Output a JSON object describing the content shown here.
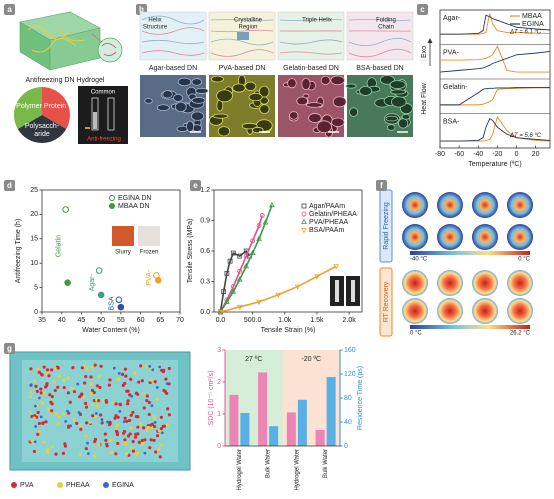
{
  "panel_labels": [
    "a",
    "b",
    "c",
    "d",
    "e",
    "f",
    "g"
  ],
  "panel_a": {
    "title": "Antifreezing DN Hydrogel",
    "pie_labels": {
      "polymer": "Polymer",
      "protein": "Protein",
      "polysaccharide": [
        "Polysacch-",
        "aride"
      ]
    },
    "photo_labels": [
      "Common",
      "Anti-freezing"
    ]
  },
  "panel_b": {
    "columns": [
      {
        "schematic": [
          "Helix",
          "Structure"
        ],
        "label": "Agar-based DN"
      },
      {
        "schematic": [
          "Crystalline",
          "Region"
        ],
        "label": "PVA-based DN"
      },
      {
        "schematic": [
          "Triple Helix"
        ],
        "label": "Gelatin-based DN"
      },
      {
        "schematic": [
          "Folding",
          "Chain"
        ],
        "label": "BSA-based DN"
      }
    ]
  },
  "panel_f": {
    "rows": [
      "Rapid Freezing",
      "RT Recovery"
    ],
    "scales": [
      [
        "-40 °C",
        "0 °C"
      ],
      [
        "0 °C",
        "26.2 °C"
      ]
    ]
  },
  "panel_g": {
    "legend": [
      "PVA",
      "PHEAA",
      "EGINA"
    ]
  },
  "chart_data": [
    {
      "type": "line",
      "x_label": "Temperature (ºC)",
      "y_label": "Heat Flow",
      "exo_label": "Exo",
      "x": [
        -80,
        -60,
        -40,
        -35,
        -32,
        -28,
        -25,
        -20,
        -10,
        0,
        20,
        35
      ],
      "xlim": [
        -80,
        35
      ],
      "xticks": [
        -80,
        -60,
        -40,
        -20,
        0,
        20
      ],
      "ylim": [
        0,
        4
      ],
      "groups": [
        {
          "label": "Agar-",
          "annotation": "ΔT = 6.1 ºC",
          "series": [
            {
              "name": "MBAA",
              "color": "#f08a24",
              "values": [
                3.3,
                3.3,
                3.3,
                3.32,
                3.35,
                3.9,
                3.6,
                3.4,
                3.35,
                3.35,
                3.33,
                3.32
              ]
            },
            {
              "name": "EGINA",
              "color": "#22385e",
              "values": [
                3.3,
                3.3,
                3.32,
                3.4,
                3.85,
                3.8,
                3.75,
                3.7,
                3.6,
                3.5,
                3.45,
                3.42
              ]
            }
          ]
        },
        {
          "label": "PVA-",
          "series": [
            {
              "name": "MBAA",
              "color": "#f08a24",
              "values": [
                2.55,
                2.55,
                2.56,
                2.58,
                2.6,
                2.65,
                2.7,
                2.95,
                2.25,
                2.2,
                2.2,
                2.2
              ]
            },
            {
              "name": "EGINA",
              "color": "#22385e",
              "values": [
                2.2,
                2.25,
                2.3,
                2.32,
                2.35,
                2.4,
                2.45,
                2.5,
                2.6,
                2.7,
                2.75,
                2.8
              ]
            }
          ]
        },
        {
          "label": "Gelatin-",
          "series": [
            {
              "name": "MBAA",
              "color": "#f08a24",
              "values": [
                1.25,
                1.25,
                1.25,
                1.27,
                1.3,
                1.35,
                1.4,
                1.7,
                1.72,
                1.73,
                1.75,
                1.75
              ]
            },
            {
              "name": "EGINA",
              "color": "#22385e",
              "values": [
                1.25,
                1.25,
                1.6,
                1.7,
                1.72,
                1.73,
                1.73,
                1.74,
                1.74,
                1.75,
                1.75,
                1.75
              ]
            }
          ]
        },
        {
          "label": "BSA-",
          "annotation": "ΔT = 5.6 ºC",
          "series": [
            {
              "name": "MBAA",
              "color": "#f08a24",
              "values": [
                0.2,
                0.2,
                0.2,
                0.2,
                0.22,
                0.25,
                0.4,
                0.9,
                0.5,
                0.3,
                0.22,
                0.2
              ]
            },
            {
              "name": "EGINA",
              "color": "#22385e",
              "values": [
                0.2,
                0.2,
                0.22,
                0.3,
                0.6,
                0.85,
                0.8,
                0.6,
                0.4,
                0.3,
                0.25,
                0.22
              ]
            }
          ]
        }
      ]
    },
    {
      "type": "scatter",
      "x_label": "Water Content (%)",
      "y_label": "Antifreezing Time (h)",
      "xlim": [
        35,
        70
      ],
      "xticks": [
        35,
        40,
        45,
        50,
        55,
        60,
        65,
        70
      ],
      "ylim": [
        0,
        25
      ],
      "yticks": [
        0,
        5,
        10,
        15,
        20,
        25
      ],
      "groups": [
        "Gelatin",
        "Agar-",
        "BSA",
        "PVA-"
      ],
      "group_colors": [
        "#3f9a3c",
        "#3aa08a",
        "#2f4fa8",
        "#f0a030"
      ],
      "series": [
        {
          "name": "EGINA DN",
          "marker": "open",
          "x": [
            41,
            49.5,
            54.5,
            64
          ],
          "values": [
            21,
            8.5,
            2.5,
            7.5
          ]
        },
        {
          "name": "MBAA DN",
          "marker": "filled",
          "x": [
            41.5,
            50,
            55,
            64.5
          ],
          "values": [
            6,
            3.5,
            1,
            6.5
          ]
        }
      ],
      "inset_labels": [
        "Slurry",
        "Frozen"
      ]
    },
    {
      "type": "line",
      "x_label": "Tensile Strain (%)",
      "y_label": "Tensile Stress (MPa)",
      "xlim": [
        -100,
        2200
      ],
      "xticks": [
        {
          "value": 0,
          "label": "0.0"
        },
        {
          "value": 500,
          "label": "500.0"
        },
        {
          "value": 1000,
          "label": "1.0k"
        },
        {
          "value": 1500,
          "label": "1.5k"
        },
        {
          "value": 2000,
          "label": "2.0k"
        }
      ],
      "ylim": [
        0,
        1.2
      ],
      "yticks": [
        {
          "value": 0,
          "label": "0.0"
        },
        0.3,
        0.6,
        0.9,
        1.2
      ],
      "series": [
        {
          "name": "Agar/PAAm",
          "color": "#444444",
          "marker": "square",
          "x": [
            0,
            50,
            100,
            150,
            200,
            300,
            400,
            450
          ],
          "values": [
            0,
            0.2,
            0.38,
            0.5,
            0.58,
            0.55,
            0.6,
            0.55
          ]
        },
        {
          "name": "Gelatin/PHEAA",
          "color": "#e0508a",
          "marker": "circle",
          "x": [
            0,
            100,
            200,
            300,
            400,
            500,
            600,
            650
          ],
          "values": [
            0,
            0.12,
            0.25,
            0.4,
            0.55,
            0.7,
            0.85,
            0.95
          ]
        },
        {
          "name": "PVA/PHEAA",
          "color": "#3a9a4a",
          "marker": "triangle",
          "x": [
            0,
            100,
            200,
            300,
            400,
            500,
            600,
            700,
            800
          ],
          "values": [
            0,
            0.1,
            0.2,
            0.32,
            0.45,
            0.58,
            0.72,
            0.88,
            1.05
          ]
        },
        {
          "name": "BSA/PAAm",
          "color": "#f0a030",
          "marker": "triangle-down",
          "x": [
            0,
            300,
            600,
            900,
            1200,
            1500,
            1800
          ],
          "values": [
            0,
            0.05,
            0.1,
            0.17,
            0.25,
            0.35,
            0.45
          ]
        }
      ]
    },
    {
      "type": "bar",
      "y_label": "SDC (10⁻⁵ cm²/s)",
      "y2_label": "Residence Time (ps)",
      "categories": [
        "Hydrogel Water",
        "Bulk Water",
        "Hydrogel Water",
        "Bulk Water"
      ],
      "regions": [
        "27 ºC",
        "-20 ºC"
      ],
      "region_colors": [
        "#d6eed8",
        "#fbe2d2"
      ],
      "ylim": [
        0,
        3
      ],
      "yticks": [
        0,
        1,
        2,
        3
      ],
      "y2lim": [
        0,
        160
      ],
      "y2ticks": [
        0,
        40,
        80,
        120,
        160
      ],
      "series": [
        {
          "color": "#ec84b4",
          "values": [
            1.6,
            2.3,
            1.05,
            0.5
          ]
        },
        {
          "color": "#5ab0e4",
          "axis": "y2",
          "values": [
            55,
            33,
            77,
            115
          ]
        }
      ]
    }
  ]
}
